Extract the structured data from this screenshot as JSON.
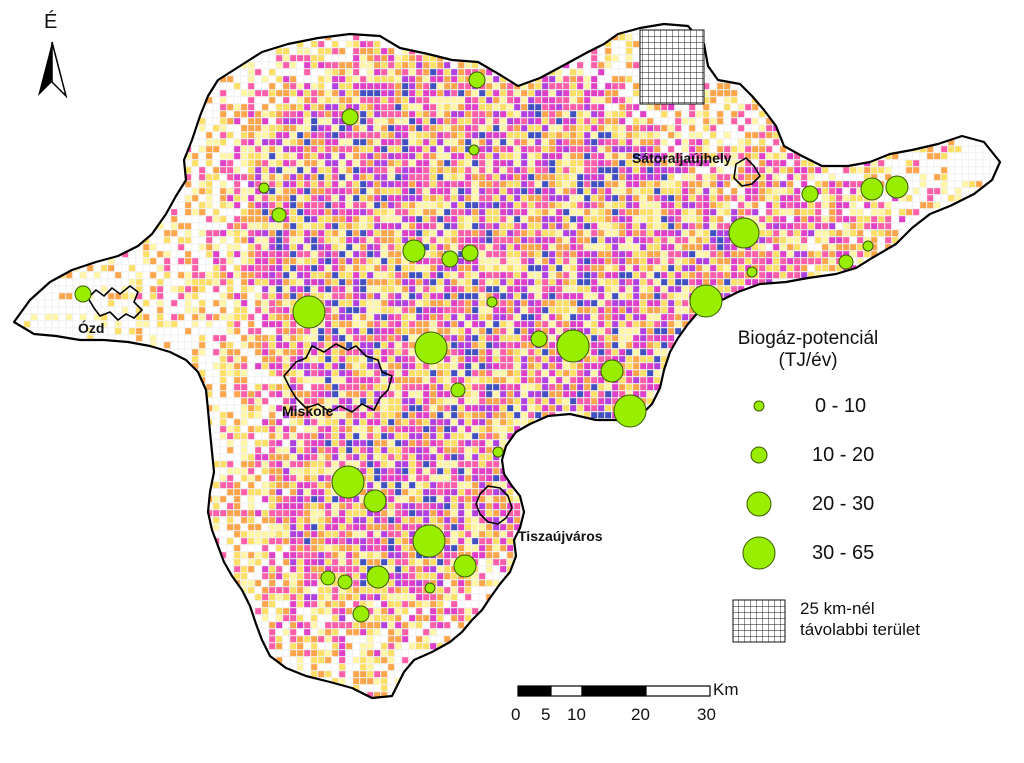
{
  "north_arrow": {
    "letter": "É"
  },
  "cities": [
    {
      "name": "Sátoraljaújhely"
    },
    {
      "name": "Ózd"
    },
    {
      "name": "Miskolc"
    },
    {
      "name": "Tiszaújváros"
    }
  ],
  "legend": {
    "title_line1": "Biogáz-potenciál",
    "title_line2": "(TJ/év)",
    "classes": [
      {
        "label": "0  - 10"
      },
      {
        "label": "10 - 20"
      },
      {
        "label": "20 - 30"
      },
      {
        "label": "30 - 65"
      }
    ],
    "hatch_line1": "25 km-nél",
    "hatch_line2": "távolabbi terület",
    "circle_fill": "#99ee00",
    "circle_stroke": "#3a5a00"
  },
  "scale_bar": {
    "unit": "Km",
    "ticks": [
      "0",
      "5",
      "10",
      "20",
      "30"
    ]
  },
  "colors": {
    "grid_light": "#fff6a8",
    "grid_yellow": "#ffe066",
    "grid_orange": "#ffa64d",
    "grid_pink": "#ff5fa8",
    "grid_magenta": "#e040c8",
    "grid_purple": "#b040e0",
    "grid_blue": "#4050c0"
  }
}
